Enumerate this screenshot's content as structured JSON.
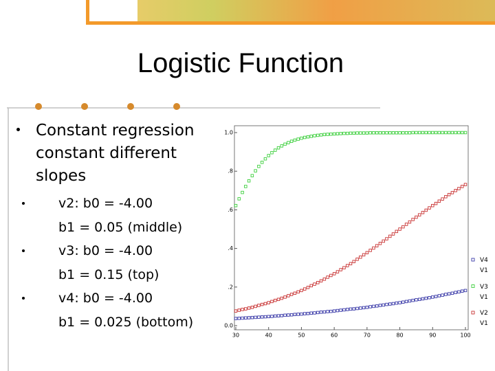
{
  "slide": {
    "title": "Logistic Function",
    "bullets": [
      {
        "text": "Constant regression constant different slopes",
        "sub": [
          {
            "lines": [
              "v2: b0 = -4.00",
              "b1 = 0.05 (middle)"
            ]
          },
          {
            "lines": [
              "v3: b0 = -4.00",
              "b1 = 0.15 (top)"
            ]
          },
          {
            "lines": [
              "v4: b0 = -4.00",
              "b1 = 0.025 (bottom)"
            ]
          }
        ]
      }
    ]
  },
  "chart_data": {
    "type": "scatter",
    "x": [
      30,
      31,
      32,
      33,
      34,
      35,
      36,
      37,
      38,
      39,
      40,
      41,
      42,
      43,
      44,
      45,
      46,
      47,
      48,
      49,
      50,
      51,
      52,
      53,
      54,
      55,
      56,
      57,
      58,
      59,
      60,
      61,
      62,
      63,
      64,
      65,
      66,
      67,
      68,
      69,
      70,
      71,
      72,
      73,
      74,
      75,
      76,
      77,
      78,
      79,
      80,
      81,
      82,
      83,
      84,
      85,
      86,
      87,
      88,
      89,
      90,
      91,
      92,
      93,
      94,
      95,
      96,
      97,
      98,
      99,
      100
    ],
    "series": [
      {
        "name": "V4 V1",
        "color": "#3a3aa8",
        "values": [
          0.037,
          0.038,
          0.039,
          0.04,
          0.041,
          0.042,
          0.043,
          0.044,
          0.045,
          0.046,
          0.047,
          0.048,
          0.05,
          0.051,
          0.052,
          0.054,
          0.055,
          0.056,
          0.058,
          0.059,
          0.06,
          0.062,
          0.063,
          0.065,
          0.066,
          0.068,
          0.07,
          0.071,
          0.073,
          0.074,
          0.076,
          0.078,
          0.08,
          0.082,
          0.084,
          0.086,
          0.087,
          0.089,
          0.091,
          0.093,
          0.095,
          0.098,
          0.1,
          0.102,
          0.105,
          0.107,
          0.11,
          0.112,
          0.114,
          0.117,
          0.119,
          0.122,
          0.125,
          0.128,
          0.131,
          0.134,
          0.136,
          0.139,
          0.142,
          0.145,
          0.148,
          0.151,
          0.155,
          0.158,
          0.162,
          0.165,
          0.168,
          0.172,
          0.175,
          0.179,
          0.182
        ]
      },
      {
        "name": "V3 V1",
        "color": "#3ccf3c",
        "values": [
          0.622,
          0.657,
          0.69,
          0.721,
          0.75,
          0.777,
          0.802,
          0.825,
          0.846,
          0.864,
          0.881,
          0.896,
          0.909,
          0.921,
          0.931,
          0.94,
          0.948,
          0.955,
          0.961,
          0.966,
          0.971,
          0.975,
          0.978,
          0.981,
          0.984,
          0.986,
          0.988,
          0.99,
          0.991,
          0.992,
          0.993,
          0.994,
          0.995,
          0.996,
          0.996,
          0.997,
          0.997,
          0.998,
          0.998,
          0.998,
          0.998,
          0.999,
          0.999,
          0.999,
          0.999,
          0.999,
          0.999,
          0.999,
          0.999,
          0.999,
          0.999,
          0.999,
          0.999,
          0.999,
          1.0,
          1.0,
          1.0,
          1.0,
          1.0,
          1.0,
          1.0,
          1.0,
          1.0,
          1.0,
          1.0,
          1.0,
          1.0,
          1.0,
          1.0,
          1.0,
          1.0
        ]
      },
      {
        "name": "V2 V1",
        "color": "#c83232",
        "values": [
          0.076,
          0.08,
          0.084,
          0.087,
          0.091,
          0.095,
          0.1,
          0.105,
          0.11,
          0.114,
          0.119,
          0.125,
          0.131,
          0.136,
          0.142,
          0.148,
          0.155,
          0.162,
          0.168,
          0.175,
          0.182,
          0.19,
          0.198,
          0.207,
          0.215,
          0.223,
          0.232,
          0.241,
          0.251,
          0.26,
          0.269,
          0.279,
          0.29,
          0.3,
          0.311,
          0.321,
          0.332,
          0.344,
          0.355,
          0.367,
          0.378,
          0.39,
          0.402,
          0.414,
          0.426,
          0.438,
          0.45,
          0.463,
          0.475,
          0.488,
          0.5,
          0.512,
          0.525,
          0.537,
          0.55,
          0.562,
          0.574,
          0.586,
          0.598,
          0.61,
          0.622,
          0.633,
          0.645,
          0.656,
          0.668,
          0.679,
          0.689,
          0.7,
          0.71,
          0.721,
          0.731
        ]
      }
    ],
    "xlim": [
      30,
      100
    ],
    "xticks": [
      30,
      40,
      50,
      60,
      70,
      80,
      90,
      100
    ],
    "ylim": [
      0,
      1
    ],
    "yticks": [
      {
        "value": 0,
        "label": "0.0"
      },
      {
        "value": 0.2,
        "label": ".2"
      },
      {
        "value": 0.4,
        "label": ".4"
      },
      {
        "value": 0.6,
        "label": ".6"
      },
      {
        "value": 0.8,
        "label": ".8"
      },
      {
        "value": 1,
        "label": "1.0"
      }
    ],
    "grid": false,
    "legend": "right"
  }
}
